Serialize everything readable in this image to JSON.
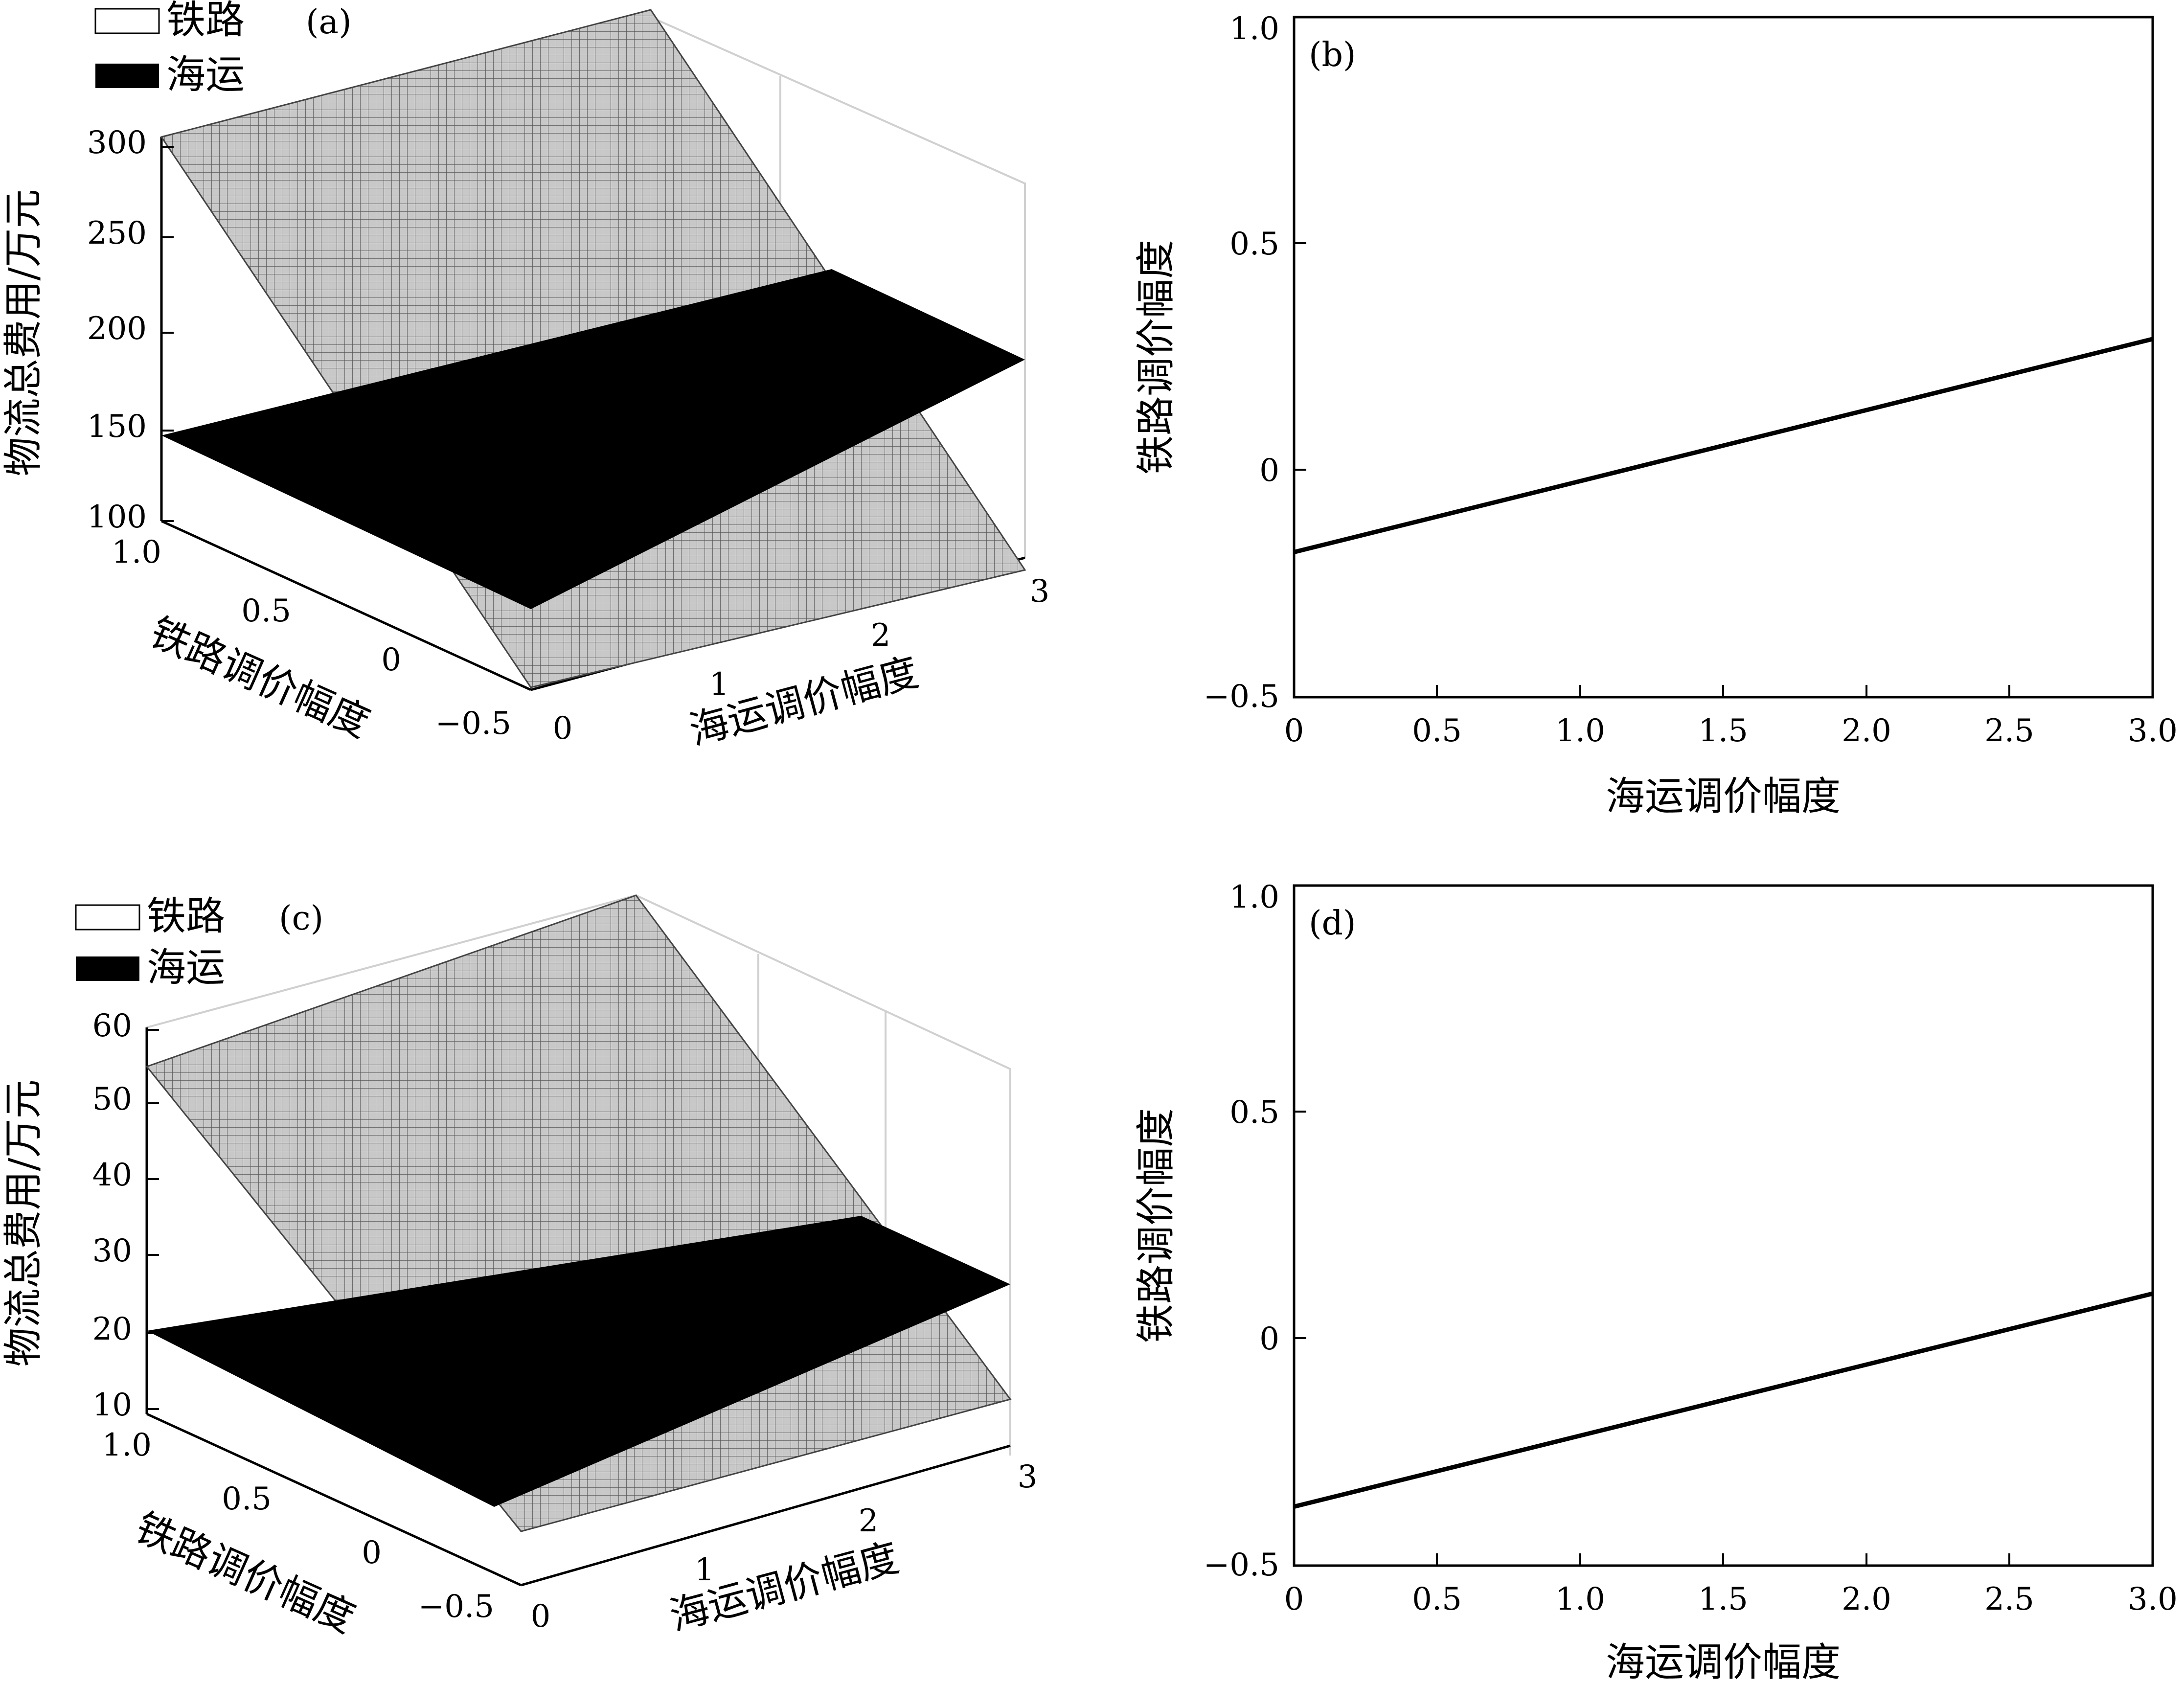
{
  "chart_data": [
    {
      "type": "surface",
      "panel_label": "(a)",
      "legend": [
        "铁路",
        "海运"
      ],
      "xlabel": "海运调价幅度",
      "ylabel": "铁路调价幅度",
      "zlabel": "物流总费用/万元",
      "x_ticks": [
        "0",
        "1",
        "2",
        "3"
      ],
      "y_ticks": [
        "1.0",
        "0.5",
        "0",
        "−0.5"
      ],
      "z_ticks": [
        "100",
        "150",
        "200",
        "250",
        "300"
      ],
      "xlim": [
        0,
        3
      ],
      "ylim": [
        -0.5,
        1.0
      ],
      "zlim": [
        100,
        300
      ],
      "series": [
        {
          "name": "铁路",
          "fill": "#bdbdbd",
          "corners": {
            "x0_y1": 300,
            "x3_y1": 330,
            "x0_ym05": 150,
            "x3_ym05": 115
          }
        },
        {
          "name": "海运",
          "fill": "#000000",
          "corners": {
            "x0_y1": 142,
            "x3_y1": 185,
            "x0_ym05": 92,
            "x3_ym05": 235
          }
        }
      ]
    },
    {
      "type": "line",
      "panel_label": "(b)",
      "xlabel": "海运调价幅度",
      "ylabel": "铁路调价幅度",
      "x_ticks": [
        "0",
        "0.5",
        "1.0",
        "1.5",
        "2.0",
        "2.5",
        "3.0"
      ],
      "y_ticks": [
        "−0.5",
        "0",
        "0.5",
        "1.0"
      ],
      "xlim": [
        0,
        3.0
      ],
      "ylim": [
        -0.5,
        1.0
      ],
      "series": [
        {
          "x": [
            0,
            3.0
          ],
          "y": [
            -0.18,
            0.29
          ]
        }
      ]
    },
    {
      "type": "surface",
      "panel_label": "(c)",
      "legend": [
        "铁路",
        "海运"
      ],
      "xlabel": "海运调价幅度",
      "ylabel": "铁路调价幅度",
      "zlabel": "物流总费用/万元",
      "x_ticks": [
        "0",
        "1",
        "2",
        "3"
      ],
      "y_ticks": [
        "1.0",
        "0.5",
        "0",
        "−0.5"
      ],
      "z_ticks": [
        "10",
        "20",
        "30",
        "40",
        "50",
        "60"
      ],
      "xlim": [
        0,
        3
      ],
      "ylim": [
        -0.5,
        1.0
      ],
      "zlim": [
        10,
        60
      ],
      "series": [
        {
          "name": "铁路",
          "fill": "#bdbdbd",
          "corners": {
            "x0_y1": 54,
            "x3_y1": 62,
            "x0_ym05": 25,
            "x3_ym05": 17
          }
        },
        {
          "name": "海运",
          "fill": "#000000",
          "corners": {
            "x0_y1": 20,
            "x3_y1": 27,
            "x0_ym05": 12,
            "x3_ym05": 38
          }
        }
      ]
    },
    {
      "type": "line",
      "panel_label": "(d)",
      "xlabel": "海运调价幅度",
      "ylabel": "铁路调价幅度",
      "x_ticks": [
        "0",
        "0.5",
        "1.0",
        "1.5",
        "2.0",
        "2.5",
        "3.0"
      ],
      "y_ticks": [
        "−0.5",
        "0",
        "0.5",
        "1.0"
      ],
      "xlim": [
        0,
        3.0
      ],
      "ylim": [
        -0.5,
        1.0
      ],
      "series": [
        {
          "x": [
            0,
            3.0
          ],
          "y": [
            -0.37,
            0.1
          ]
        }
      ]
    }
  ]
}
